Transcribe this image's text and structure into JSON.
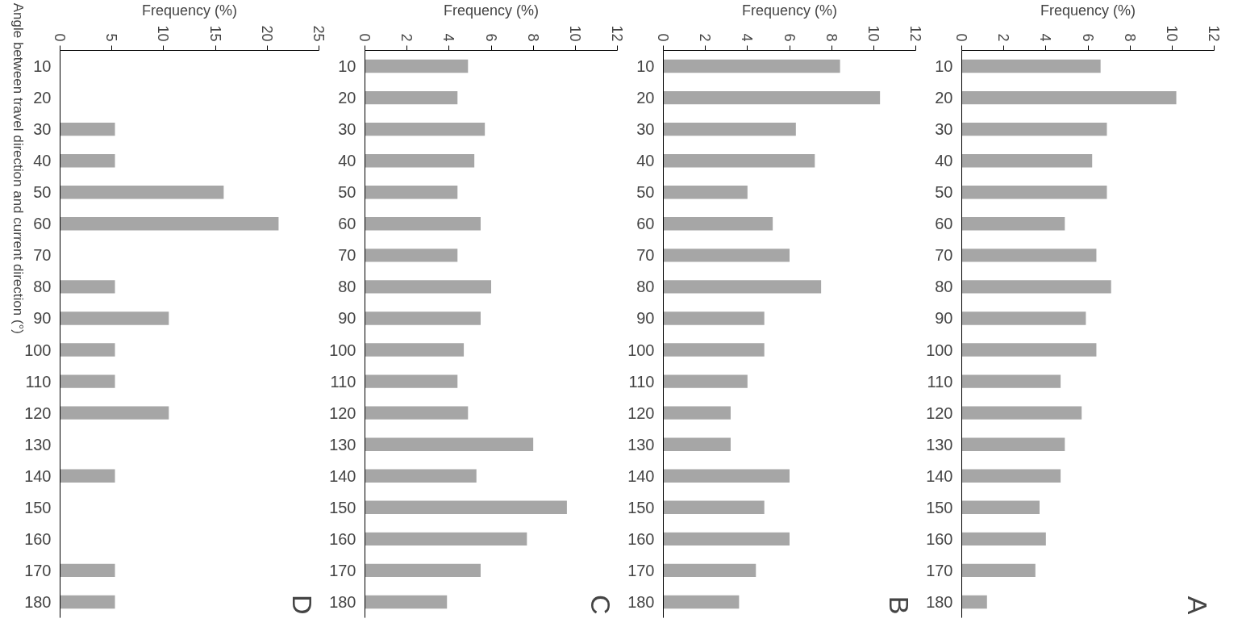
{
  "chart_data": [
    {
      "type": "bar",
      "orientation": "horizontal",
      "title": "A",
      "xlabel": "Frequency (%)",
      "categories": [
        "10",
        "20",
        "30",
        "40",
        "50",
        "60",
        "70",
        "80",
        "90",
        "100",
        "110",
        "120",
        "130",
        "140",
        "150",
        "160",
        "170",
        "180"
      ],
      "values": [
        6.6,
        10.2,
        6.9,
        6.2,
        6.9,
        4.9,
        6.4,
        7.1,
        5.9,
        6.4,
        4.7,
        5.7,
        4.9,
        4.7,
        3.7,
        4.0,
        3.5,
        1.2
      ],
      "color": "#a6a6a6",
      "xlim": [
        0,
        12
      ],
      "xticks": [
        0,
        2,
        4,
        6,
        8,
        10,
        12
      ],
      "grid": false
    },
    {
      "type": "bar",
      "orientation": "horizontal",
      "title": "B",
      "xlabel": "Frequency (%)",
      "categories": [
        "10",
        "20",
        "30",
        "40",
        "50",
        "60",
        "70",
        "80",
        "90",
        "100",
        "110",
        "120",
        "130",
        "140",
        "150",
        "160",
        "170",
        "180"
      ],
      "values": [
        8.4,
        10.3,
        6.3,
        7.2,
        4.0,
        5.2,
        6.0,
        7.5,
        4.8,
        4.8,
        4.0,
        3.2,
        3.2,
        6.0,
        4.8,
        6.0,
        4.4,
        3.6
      ],
      "color": "#a6a6a6",
      "xlim": [
        0,
        12
      ],
      "xticks": [
        0,
        2,
        4,
        6,
        8,
        10,
        12
      ],
      "grid": false
    },
    {
      "type": "bar",
      "orientation": "horizontal",
      "title": "C",
      "xlabel": "Frequency (%)",
      "categories": [
        "10",
        "20",
        "30",
        "40",
        "50",
        "60",
        "70",
        "80",
        "90",
        "100",
        "110",
        "120",
        "130",
        "140",
        "150",
        "160",
        "170",
        "180"
      ],
      "values": [
        4.9,
        4.4,
        5.7,
        5.2,
        4.4,
        5.5,
        4.4,
        6.0,
        5.5,
        4.7,
        4.4,
        4.9,
        8.0,
        5.3,
        9.6,
        7.7,
        5.5,
        3.9
      ],
      "color": "#a6a6a6",
      "xlim": [
        0,
        12
      ],
      "xticks": [
        0,
        2,
        4,
        6,
        8,
        10,
        12
      ],
      "grid": false
    },
    {
      "type": "bar",
      "orientation": "horizontal",
      "title": "D",
      "xlabel": "Frequency (%)",
      "ylabel": "Angle between travel direction and current direction (°)",
      "categories": [
        "10",
        "20",
        "30",
        "40",
        "50",
        "60",
        "70",
        "80",
        "90",
        "100",
        "110",
        "120",
        "130",
        "140",
        "150",
        "160",
        "170",
        "180"
      ],
      "values": [
        0,
        0,
        5.3,
        5.3,
        15.8,
        21.1,
        0,
        5.3,
        10.5,
        5.3,
        5.3,
        10.5,
        0,
        5.3,
        0,
        0,
        5.3,
        5.3
      ],
      "color": "#a6a6a6",
      "xlim": [
        0,
        25
      ],
      "xticks": [
        0,
        5,
        10,
        15,
        20,
        25
      ],
      "grid": false
    }
  ]
}
